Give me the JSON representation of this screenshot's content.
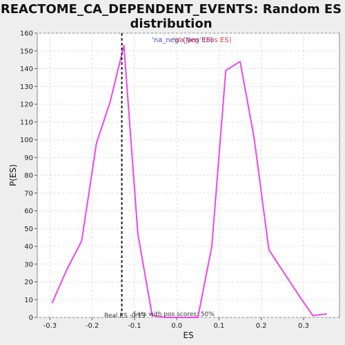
{
  "chart_data": {
    "type": "line",
    "title_line1": "REACTOME_CA_DEPENDENT_EVENTS: Random ES",
    "title_line2": "distribution",
    "xlabel": "ES",
    "ylabel": "P(ES)",
    "xlim": [
      -0.33,
      0.385
    ],
    "ylim": [
      0,
      160
    ],
    "xticks": [
      -0.3,
      -0.2,
      -0.1,
      0.0,
      0.1,
      0.2,
      0.3
    ],
    "xtick_labels": [
      "-0.3",
      "-0.2",
      "-0.1",
      "0.0",
      "0.1",
      "0.2",
      "0.3"
    ],
    "yticks": [
      0,
      10,
      20,
      30,
      40,
      50,
      60,
      70,
      80,
      90,
      100,
      110,
      120,
      130,
      140,
      150,
      160
    ],
    "ytick_labels": [
      "0",
      "10",
      "20",
      "30",
      "40",
      "50",
      "60",
      "70",
      "80",
      "90",
      "100",
      "110",
      "120",
      "130",
      "140",
      "150",
      "160"
    ],
    "grid": true,
    "series": [
      {
        "name": "'na_pos' (Pos ES)",
        "color": "#ee44ee",
        "x": [
          -0.295,
          -0.26,
          -0.225,
          -0.19,
          -0.158,
          -0.125,
          -0.092,
          -0.058,
          -0.025,
          0.008,
          0.05,
          0.083,
          0.116,
          0.15,
          0.183,
          0.218,
          0.29,
          0.322,
          0.355
        ],
        "y": [
          8,
          27,
          43,
          98,
          121,
          153,
          47,
          1,
          0,
          0,
          0,
          40,
          139,
          144,
          101,
          38,
          12,
          1,
          2
        ]
      }
    ],
    "legend": [
      {
        "text": "'na_neg' (Neg ES)",
        "color": "#4444cc"
      },
      {
        "text": "'na_pos' (Pos ES)",
        "color": "#ee3333"
      }
    ],
    "real_es": {
      "x": -0.13,
      "label": "Real ES -0.13"
    },
    "annotation": "Sets with pos scores: 50%",
    "colors": {
      "line": "#ee44ee",
      "marker_line": "#222222",
      "plot_bg": "#ffffff",
      "grid": "#dddddd"
    }
  }
}
